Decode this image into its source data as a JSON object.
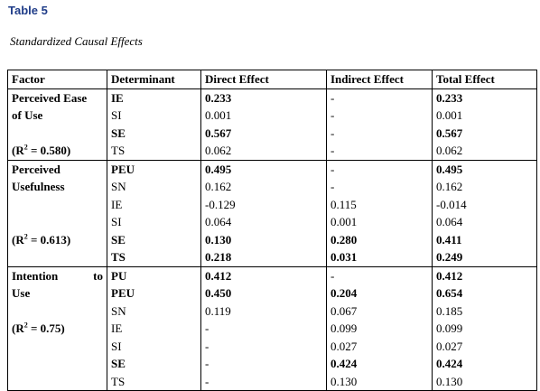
{
  "title": "Table 5",
  "caption": "Standardized Causal Effects",
  "columns": [
    "Factor",
    "Determinant",
    "Direct Effect",
    "Indirect Effect",
    "Total Effect"
  ],
  "rows": [
    {
      "factor": "Perceived Ease",
      "det": "IE",
      "direct": "0.233",
      "indirect": "-",
      "total": "0.233",
      "bold": true,
      "group_start": true
    },
    {
      "factor": "of Use",
      "det": "SI",
      "direct": "0.001",
      "indirect": "-",
      "total": "0.001",
      "bold": false
    },
    {
      "factor": "",
      "det": "SE",
      "direct": "0.567",
      "indirect": "-",
      "total": "0.567",
      "bold": true
    },
    {
      "r2": "0.580",
      "det": "TS",
      "direct": "0.062",
      "indirect": "-",
      "total": "0.062",
      "bold": false
    },
    {
      "factor": "Perceived",
      "det": "PEU",
      "direct": "0.495",
      "indirect": "-",
      "total": "0.495",
      "bold": true,
      "group_start": true
    },
    {
      "factor": "Usefulness",
      "det": "SN",
      "direct": "0.162",
      "indirect": "-",
      "total": "0.162",
      "bold": false
    },
    {
      "factor": "",
      "det": "IE",
      "direct": "-0.129",
      "indirect": "0.115",
      "total": "-0.014",
      "bold": false
    },
    {
      "factor": "",
      "det": "SI",
      "direct": "0.064",
      "indirect": "0.001",
      "total": "0.064",
      "bold": false
    },
    {
      "r2": "0.613",
      "det": "SE",
      "direct": "0.130",
      "indirect": "0.280",
      "total": "0.411",
      "bold": true
    },
    {
      "factor": "",
      "det": "TS",
      "direct": "0.218",
      "indirect": "0.031",
      "total": "0.249",
      "bold": true
    },
    {
      "factor": "Intention to",
      "det": "PU",
      "direct": "0.412",
      "indirect": "-",
      "total": "0.412",
      "bold": true,
      "group_start": true,
      "justify": true
    },
    {
      "factor": "Use",
      "det": "PEU",
      "direct": "0.450",
      "indirect": "0.204",
      "total": "0.654",
      "bold": true
    },
    {
      "factor": "",
      "det": "SN",
      "direct": "0.119",
      "indirect": "0.067",
      "total": "0.185",
      "bold": false
    },
    {
      "r2": "0.75",
      "det": "IE",
      "direct": "-",
      "indirect": "0.099",
      "total": "0.099",
      "bold": false
    },
    {
      "factor": "",
      "det": "SI",
      "direct": "-",
      "indirect": "0.027",
      "total": "0.027",
      "bold": false
    },
    {
      "factor": "",
      "det": "SE",
      "direct": "-",
      "indirect": "0.424",
      "total": "0.424",
      "bold": true
    },
    {
      "factor": "",
      "det": "TS",
      "direct": "-",
      "indirect": "0.130",
      "total": "0.130",
      "bold": false
    }
  ]
}
